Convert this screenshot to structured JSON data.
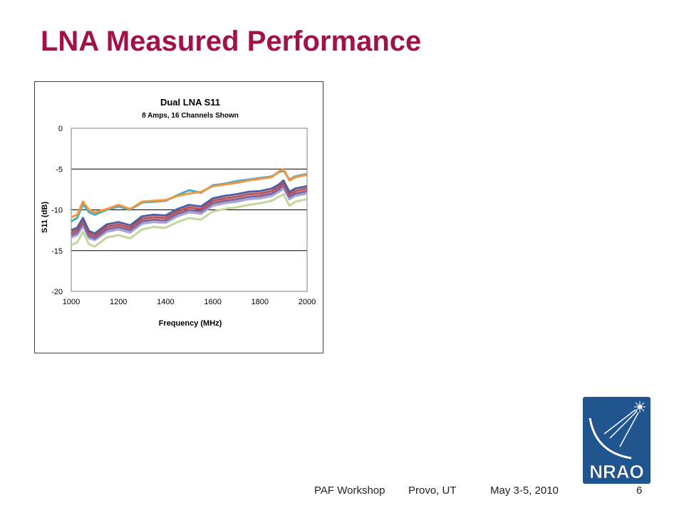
{
  "slide": {
    "title": "LNA Measured Performance"
  },
  "footer": {
    "event": "PAF Workshop",
    "location": "Provo, UT",
    "date": "May 3-5, 2010",
    "page_number": "6"
  },
  "logo": {
    "text": "NRAO",
    "background_color": "#21558f",
    "text_color": "#ffffff"
  },
  "colors": {
    "title": "#a0134a"
  },
  "chart_data": {
    "type": "line",
    "title": "Dual LNA S11",
    "subtitle": "8 Amps, 16 Channels Shown",
    "xlabel": "Frequency (MHz)",
    "ylabel": "S11 (dB)",
    "xlim": [
      1000,
      2000
    ],
    "ylim": [
      -20,
      0
    ],
    "x_ticks": [
      1000,
      1200,
      1400,
      1600,
      1800,
      2000
    ],
    "y_ticks": [
      0,
      -5,
      -10,
      -15,
      -20
    ],
    "grid": "horizontal",
    "legend": "none",
    "x": [
      1000,
      1025,
      1050,
      1075,
      1100,
      1150,
      1200,
      1250,
      1300,
      1350,
      1400,
      1450,
      1500,
      1550,
      1600,
      1650,
      1700,
      1750,
      1800,
      1850,
      1880,
      1900,
      1925,
      1950,
      2000
    ],
    "series": [
      {
        "color": "#f0963c",
        "values": [
          -10.9,
          -10.6,
          -9.0,
          -10.0,
          -10.3,
          -9.9,
          -9.4,
          -9.9,
          -9.0,
          -8.9,
          -8.8,
          -8.3,
          -8.0,
          -7.8,
          -7.1,
          -6.9,
          -6.7,
          -6.4,
          -6.2,
          -6.0,
          -5.3,
          -5.0,
          -6.4,
          -6.0,
          -5.7
        ]
      },
      {
        "color": "#4bacc6",
        "values": [
          -11.4,
          -11.0,
          -9.3,
          -10.3,
          -10.6,
          -10.0,
          -9.6,
          -10.0,
          -9.1,
          -9.0,
          -8.9,
          -8.2,
          -7.6,
          -7.9,
          -7.0,
          -6.8,
          -6.5,
          -6.3,
          -6.1,
          -5.9,
          -5.4,
          -5.2,
          -6.3,
          -5.9,
          -5.6
        ]
      },
      {
        "color": "#4f5fa0",
        "values": [
          -12.5,
          -12.2,
          -11.0,
          -12.6,
          -12.9,
          -11.8,
          -11.5,
          -11.9,
          -10.8,
          -10.6,
          -10.7,
          -9.9,
          -9.4,
          -9.6,
          -8.6,
          -8.3,
          -8.1,
          -7.8,
          -7.7,
          -7.4,
          -6.9,
          -6.4,
          -7.8,
          -7.4,
          -7.1
        ]
      },
      {
        "color": "#c0504d",
        "values": [
          -12.8,
          -12.5,
          -11.3,
          -12.9,
          -13.2,
          -12.1,
          -11.8,
          -12.2,
          -11.1,
          -10.9,
          -11.0,
          -10.2,
          -9.7,
          -9.9,
          -8.9,
          -8.6,
          -8.4,
          -8.1,
          -8.0,
          -7.7,
          -7.2,
          -6.7,
          -8.1,
          -7.7,
          -7.4
        ]
      },
      {
        "color": "#8064a2",
        "values": [
          -13.1,
          -12.8,
          -11.6,
          -13.2,
          -13.5,
          -12.4,
          -12.1,
          -12.5,
          -11.4,
          -11.2,
          -11.3,
          -10.5,
          -10.0,
          -10.2,
          -9.2,
          -8.9,
          -8.7,
          -8.4,
          -8.3,
          -8.0,
          -7.5,
          -7.0,
          -8.4,
          -8.0,
          -7.7
        ]
      },
      {
        "color": "#a5a5d9",
        "values": [
          -13.4,
          -13.1,
          -12.0,
          -13.5,
          -13.7,
          -12.7,
          -12.4,
          -12.8,
          -11.7,
          -11.5,
          -11.6,
          -10.8,
          -10.3,
          -10.5,
          -9.5,
          -9.2,
          -9.0,
          -8.7,
          -8.6,
          -8.3,
          -7.8,
          -7.4,
          -8.7,
          -8.3,
          -8.0
        ]
      },
      {
        "color": "#e8b87a",
        "values": [
          -13.3,
          -13.0,
          -11.9,
          -13.4,
          -13.6,
          -12.6,
          -12.3,
          -12.6,
          -11.6,
          -11.4,
          -11.5,
          -10.7,
          -10.2,
          -10.4,
          -9.4,
          -9.1,
          -8.9,
          -8.6,
          -8.5,
          -8.2,
          -7.7,
          -7.3,
          -8.6,
          -8.2,
          -7.9
        ]
      },
      {
        "color": "#c3d69b",
        "values": [
          -14.3,
          -14.0,
          -12.7,
          -14.2,
          -14.5,
          -13.4,
          -13.1,
          -13.5,
          -12.4,
          -12.1,
          -12.2,
          -11.5,
          -11.0,
          -11.2,
          -10.2,
          -9.9,
          -9.7,
          -9.4,
          -9.2,
          -8.9,
          -8.4,
          -8.1,
          -9.5,
          -9.0,
          -8.7
        ]
      }
    ]
  }
}
